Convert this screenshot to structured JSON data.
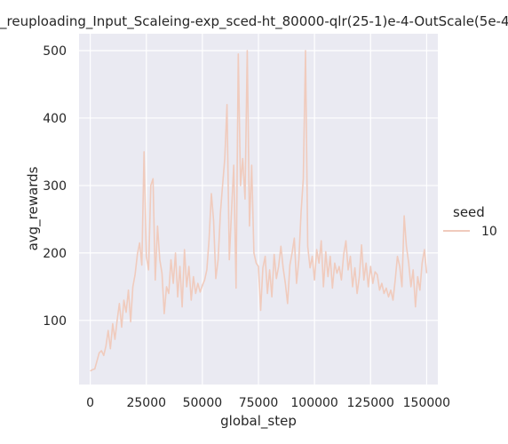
{
  "chart_data": {
    "type": "line",
    "title": "_reuploading_Input_Scaleing-exp_sced-ht_80000-qlr(25-1)e-4-OutScale(5e-4",
    "xlabel": "global_step",
    "ylabel": "avg_rewards",
    "xlim": [
      -5000,
      155000
    ],
    "ylim": [
      5,
      525
    ],
    "xticks": [
      0,
      25000,
      50000,
      75000,
      100000,
      125000,
      150000
    ],
    "yticks": [
      100,
      200,
      300,
      400,
      500
    ],
    "xtick_labels": [
      "0",
      "25000",
      "50000",
      "75000",
      "100000",
      "125000",
      "150000"
    ],
    "ytick_labels": [
      "100",
      "200",
      "300",
      "400",
      "500"
    ],
    "grid": true,
    "legend": {
      "title": "seed",
      "placement": "right",
      "entries": [
        "10"
      ]
    },
    "colors": {
      "background": "#eaeaf2",
      "grid": "#ffffff",
      "line": "#f0cbbd",
      "text": "#262626"
    },
    "series": [
      {
        "name": "10",
        "x": [
          0,
          1000,
          2000,
          3000,
          4000,
          5000,
          6000,
          7000,
          8000,
          9000,
          10000,
          11000,
          12000,
          13000,
          14000,
          15000,
          16000,
          17000,
          18000,
          19000,
          20000,
          21000,
          22000,
          23000,
          24000,
          25000,
          26000,
          27000,
          28000,
          29000,
          30000,
          31000,
          32000,
          33000,
          34000,
          35000,
          36000,
          37000,
          38000,
          39000,
          40000,
          41000,
          42000,
          43000,
          44000,
          45000,
          46000,
          47000,
          48000,
          49000,
          50000,
          51000,
          52000,
          53000,
          54000,
          55000,
          56000,
          57000,
          58000,
          59000,
          60000,
          61000,
          62000,
          63000,
          64000,
          65000,
          66000,
          67000,
          68000,
          69000,
          70000,
          71000,
          72000,
          73000,
          74000,
          75000,
          76000,
          77000,
          78000,
          79000,
          80000,
          81000,
          82000,
          83000,
          84000,
          85000,
          86000,
          87000,
          88000,
          89000,
          90000,
          91000,
          92000,
          93000,
          94000,
          95000,
          96000,
          97000,
          98000,
          99000,
          100000,
          101000,
          102000,
          103000,
          104000,
          105000,
          106000,
          107000,
          108000,
          109000,
          110000,
          111000,
          112000,
          113000,
          114000,
          115000,
          116000,
          117000,
          118000,
          119000,
          120000,
          121000,
          122000,
          123000,
          124000,
          125000,
          126000,
          127000,
          128000,
          129000,
          130000,
          131000,
          132000,
          133000,
          134000,
          135000,
          136000,
          137000,
          138000,
          139000,
          140000,
          141000,
          142000,
          143000,
          144000,
          145000,
          146000,
          147000,
          148000,
          149000,
          150000
        ],
        "y": [
          25,
          27,
          28,
          40,
          52,
          55,
          48,
          62,
          85,
          58,
          95,
          72,
          100,
          125,
          90,
          130,
          112,
          145,
          98,
          150,
          168,
          198,
          215,
          182,
          350,
          195,
          175,
          300,
          310,
          160,
          240,
          190,
          170,
          110,
          150,
          140,
          190,
          155,
          200,
          135,
          180,
          120,
          205,
          150,
          180,
          130,
          165,
          140,
          155,
          142,
          152,
          160,
          175,
          220,
          288,
          248,
          162,
          190,
          258,
          300,
          340,
          420,
          190,
          262,
          330,
          148,
          495,
          300,
          340,
          280,
          500,
          240,
          330,
          200,
          185,
          180,
          115,
          178,
          195,
          140,
          175,
          135,
          198,
          162,
          180,
          210,
          178,
          155,
          125,
          182,
          200,
          222,
          155,
          190,
          260,
          310,
          500,
          210,
          178,
          195,
          160,
          205,
          185,
          218,
          150,
          202,
          165,
          195,
          148,
          185,
          170,
          180,
          160,
          198,
          218,
          175,
          195,
          150,
          178,
          140,
          165,
          212,
          160,
          185,
          150,
          180,
          155,
          172,
          168,
          145,
          155,
          140,
          148,
          135,
          145,
          130,
          160,
          195,
          180,
          150,
          255,
          210,
          185,
          150,
          175,
          120,
          165,
          145,
          185,
          205,
          170
        ]
      }
    ]
  }
}
